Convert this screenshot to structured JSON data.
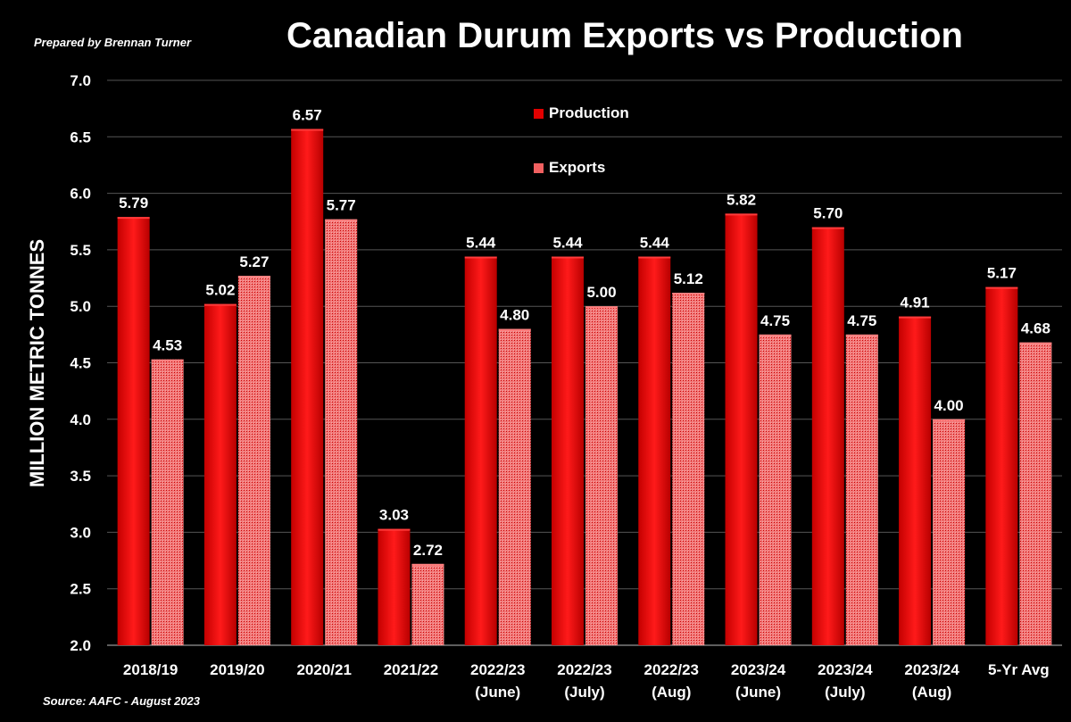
{
  "header": {
    "prepared_by": "Prepared by Brennan Turner",
    "source": "Source: AAFC - August 2023"
  },
  "colors": {
    "production": "#e10000",
    "exports": "#f06060",
    "grid": "#555555",
    "background": "#000000"
  },
  "chart_data": {
    "type": "bar",
    "title": "Canadian Durum Exports vs Production",
    "ylabel": "MILLION METRIC TONNES",
    "xlabel": "",
    "ylim": [
      2.0,
      7.0
    ],
    "yticks": [
      "2.0",
      "2.5",
      "3.0",
      "3.5",
      "4.0",
      "4.5",
      "5.0",
      "5.5",
      "6.0",
      "6.5",
      "7.0"
    ],
    "grid": true,
    "legend_position": "top-center",
    "categories": [
      [
        "2018/19"
      ],
      [
        "2019/20"
      ],
      [
        "2020/21"
      ],
      [
        "2021/22"
      ],
      [
        "2022/23",
        "(June)"
      ],
      [
        "2022/23",
        "(July)"
      ],
      [
        "2022/23",
        "(Aug)"
      ],
      [
        "2023/24",
        "(June)"
      ],
      [
        "2023/24",
        "(July)"
      ],
      [
        "2023/24",
        "(Aug)"
      ],
      [
        "5-Yr Avg"
      ]
    ],
    "series": [
      {
        "name": "Production",
        "values": [
          5.79,
          5.02,
          6.57,
          3.03,
          5.44,
          5.44,
          5.44,
          5.82,
          5.7,
          4.91,
          5.17
        ],
        "labels": [
          "5.79",
          "5.02",
          "6.57",
          "3.03",
          "5.44",
          "5.44",
          "5.44",
          "5.82",
          "5.70",
          "4.91",
          "5.17"
        ]
      },
      {
        "name": "Exports",
        "values": [
          4.53,
          5.27,
          5.77,
          2.72,
          4.8,
          5.0,
          5.12,
          4.75,
          4.75,
          4.0,
          4.68
        ],
        "labels": [
          "4.53",
          "5.27",
          "5.77",
          "2.72",
          "4.80",
          "5.00",
          "5.12",
          "4.75",
          "4.75",
          "4.00",
          "4.68"
        ]
      }
    ]
  }
}
